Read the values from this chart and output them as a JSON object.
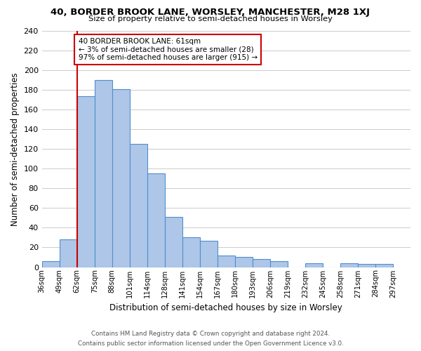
{
  "title": "40, BORDER BROOK LANE, WORSLEY, MANCHESTER, M28 1XJ",
  "subtitle": "Size of property relative to semi-detached houses in Worsley",
  "xlabel": "Distribution of semi-detached houses by size in Worsley",
  "ylabel": "Number of semi-detached properties",
  "bin_labels": [
    "36sqm",
    "49sqm",
    "62sqm",
    "75sqm",
    "88sqm",
    "101sqm",
    "114sqm",
    "128sqm",
    "141sqm",
    "154sqm",
    "167sqm",
    "180sqm",
    "193sqm",
    "206sqm",
    "219sqm",
    "232sqm",
    "245sqm",
    "258sqm",
    "271sqm",
    "284sqm",
    "297sqm"
  ],
  "bar_values": [
    6,
    28,
    174,
    190,
    181,
    125,
    95,
    51,
    30,
    27,
    12,
    10,
    8,
    6,
    0,
    4,
    0,
    4,
    3,
    3
  ],
  "highlight_bin_index": 2,
  "bar_color": "#aec6e8",
  "bar_edge_color": "#4f8fcd",
  "highlight_line_color": "#cc0000",
  "annotation_text": "40 BORDER BROOK LANE: 61sqm\n← 3% of semi-detached houses are smaller (28)\n97% of semi-detached houses are larger (915) →",
  "annotation_box_color": "#ffffff",
  "annotation_box_edge": "#cc0000",
  "ylim": [
    0,
    240
  ],
  "yticks": [
    0,
    20,
    40,
    60,
    80,
    100,
    120,
    140,
    160,
    180,
    200,
    220,
    240
  ],
  "footer_line1": "Contains HM Land Registry data © Crown copyright and database right 2024.",
  "footer_line2": "Contains public sector information licensed under the Open Government Licence v3.0.",
  "background_color": "#ffffff",
  "grid_color": "#cccccc"
}
